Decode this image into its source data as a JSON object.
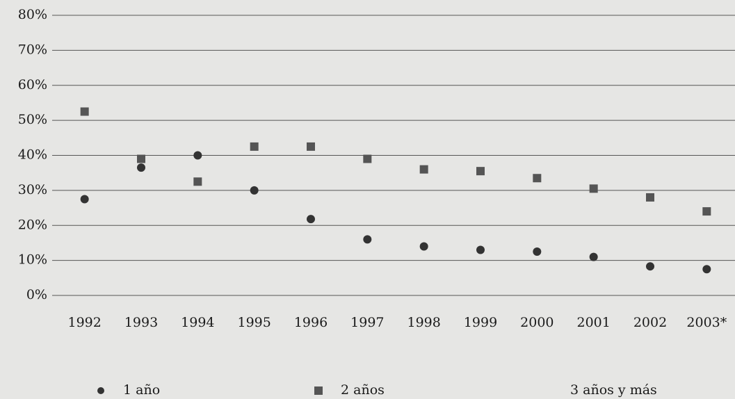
{
  "chart_data": {
    "type": "scatter",
    "categories": [
      "1992",
      "1993",
      "1994",
      "1995",
      "1996",
      "1997",
      "1998",
      "1999",
      "2000",
      "2001",
      "2002",
      "2003*"
    ],
    "series": [
      {
        "name": "1 año",
        "color": "#333333",
        "marker": "circle",
        "values": [
          27.5,
          36.5,
          40,
          30,
          21.8,
          16,
          14,
          13,
          12.5,
          11,
          8.3,
          7.5
        ]
      },
      {
        "name": "2 años",
        "color": "#555555",
        "marker": "square",
        "values": [
          52.5,
          39,
          32.5,
          42.5,
          42.5,
          39,
          36,
          35.5,
          33.5,
          30.5,
          28,
          24
        ]
      },
      {
        "name": "3 años y más",
        "color": "#999999",
        "marker": "none",
        "values": [
          null,
          null,
          null,
          null,
          null,
          null,
          null,
          null,
          null,
          null,
          null,
          null
        ]
      }
    ],
    "ylim": [
      0,
      80
    ],
    "yticks": [
      {
        "value": 0,
        "label": "0%"
      },
      {
        "value": 10,
        "label": "10%"
      },
      {
        "value": 20,
        "label": "20%"
      },
      {
        "value": 30,
        "label": "30%"
      },
      {
        "value": 40,
        "label": "40%"
      },
      {
        "value": 50,
        "label": "50%"
      },
      {
        "value": 60,
        "label": "60%"
      },
      {
        "value": 70,
        "label": "70%"
      },
      {
        "value": 80,
        "label": "80%"
      }
    ],
    "grid": true
  }
}
